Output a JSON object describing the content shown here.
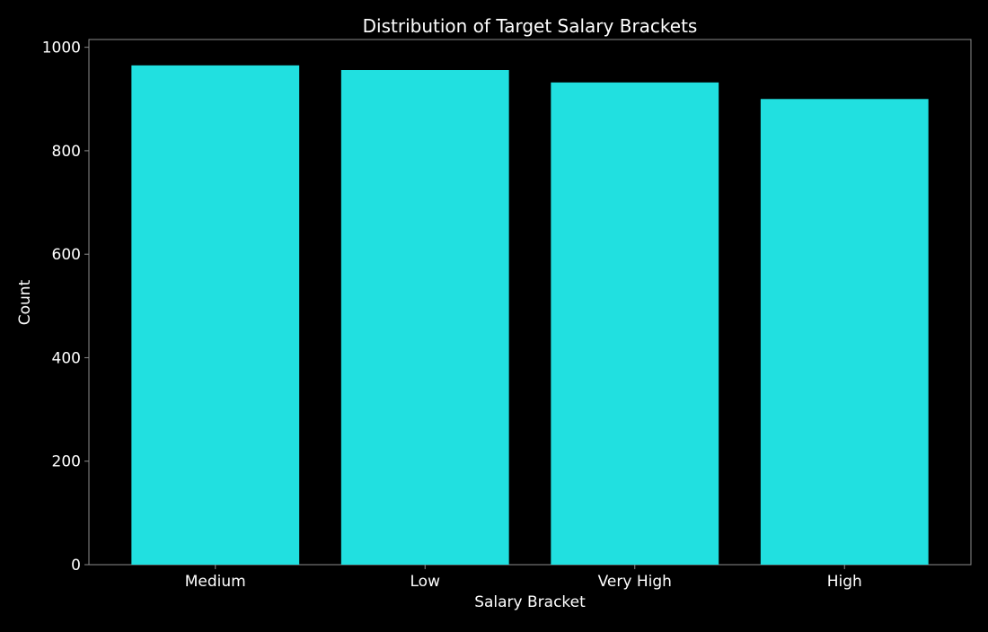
{
  "chart_data": {
    "type": "bar",
    "title": "Distribution of Target Salary Brackets",
    "xlabel": "Salary Bracket",
    "ylabel": "Count",
    "categories": [
      "Medium",
      "Low",
      "Very High",
      "High"
    ],
    "values": [
      965,
      956,
      932,
      900
    ],
    "ylim": [
      0,
      1015
    ],
    "yticks": [
      0,
      200,
      400,
      600,
      800,
      1000
    ],
    "grid": false,
    "legend": "none",
    "colors": {
      "background": "#000000",
      "bar": "#21e0e0",
      "text": "#ffffff",
      "axis": "#8c8c8c"
    }
  }
}
